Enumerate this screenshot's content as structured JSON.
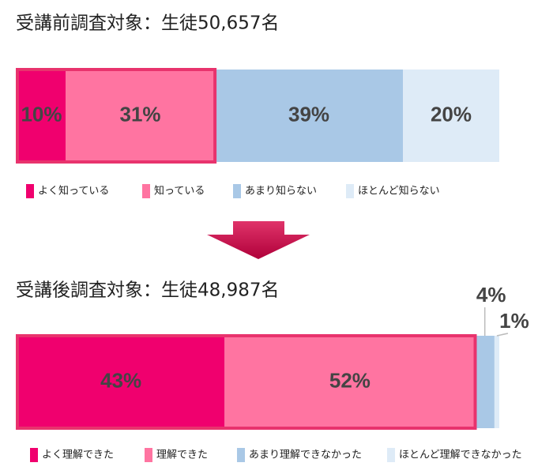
{
  "chart_data": [
    {
      "type": "stacked-bar",
      "title": "受講前調査対象：生徒50,657名",
      "series": [
        {
          "name": "よく知っている",
          "color": "#f0006e",
          "values": [
            10
          ],
          "value_labels": [
            "10%"
          ]
        },
        {
          "name": "知っている",
          "color": "#ff74a1",
          "values": [
            31
          ],
          "value_labels": [
            "31%"
          ]
        },
        {
          "name": "あまり知らない",
          "color": "#a9c8e6",
          "values": [
            39
          ],
          "value_labels": [
            "39%"
          ]
        },
        {
          "name": "ほとんど知らない",
          "color": "#deebf7",
          "values": [
            20
          ],
          "value_labels": [
            "20%"
          ]
        }
      ]
    },
    {
      "type": "stacked-bar",
      "title": "受講後調査対象：生徒48,987名",
      "series": [
        {
          "name": "よく理解できた",
          "color": "#f0006e",
          "values": [
            43
          ],
          "value_labels": [
            "43%"
          ]
        },
        {
          "name": "理解できた",
          "color": "#ff74a1",
          "values": [
            52
          ],
          "value_labels": [
            "52%"
          ]
        },
        {
          "name": "あまり理解できなかった",
          "color": "#a9c8e6",
          "values": [
            4
          ],
          "value_labels": [
            "4%"
          ]
        },
        {
          "name": "ほとんど理解できなかった",
          "color": "#deebf7",
          "values": [
            1
          ],
          "value_labels": [
            "1%"
          ]
        }
      ]
    }
  ]
}
